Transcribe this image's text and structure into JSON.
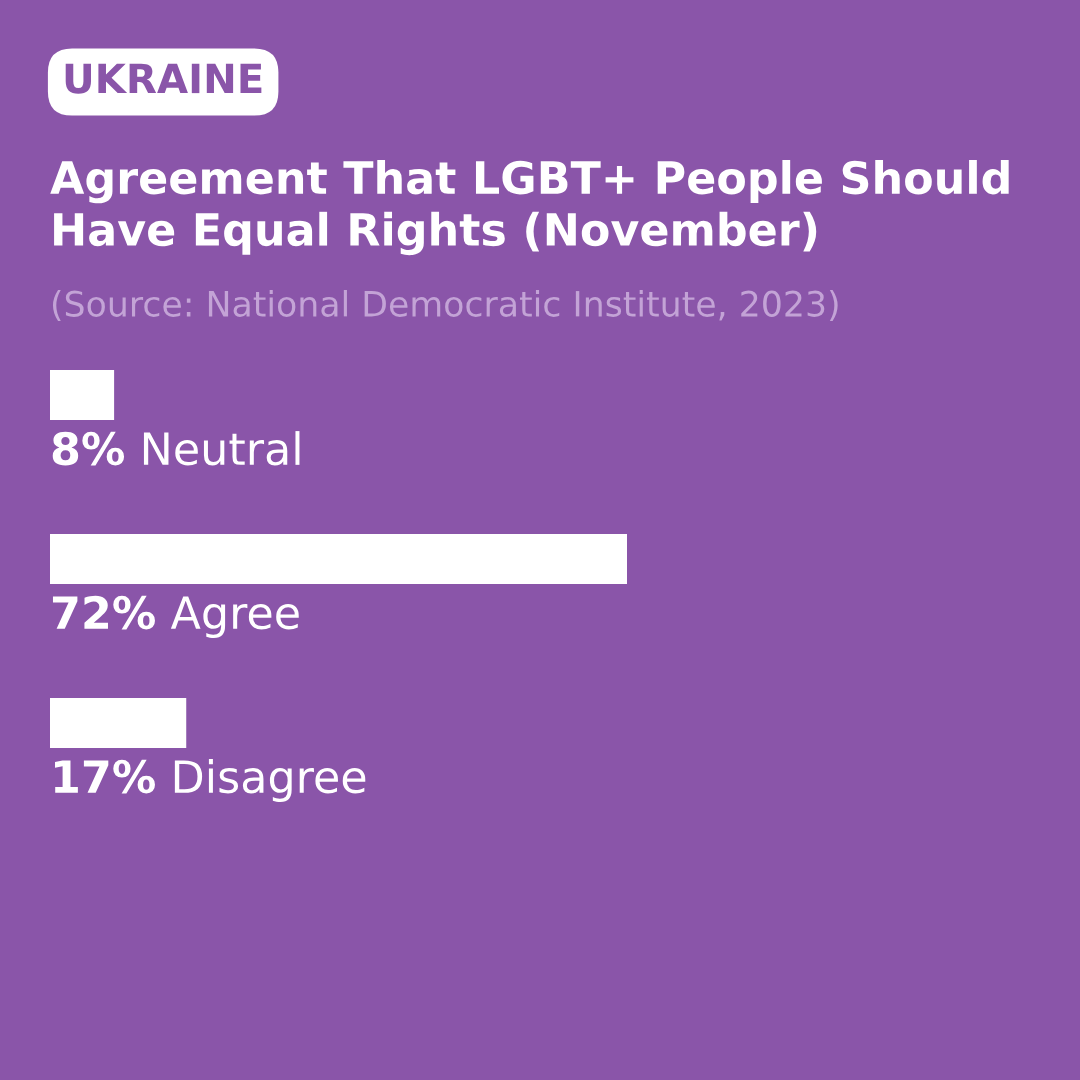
{
  "chart_data": {
    "type": "bar",
    "orientation": "horizontal",
    "title": "Agreement That LGBT+ People Should Have Equal Rights (November)",
    "subtitle": "(Source: National Democratic Institute, 2023)",
    "annotations": [
      "UKRAINE"
    ],
    "categories": [
      "Neutral",
      "Agree",
      "Disagree"
    ],
    "values": [
      8,
      72,
      17
    ],
    "value_labels": [
      "8%",
      "72%",
      "17%"
    ],
    "color": "#ffffff",
    "tick_labels": false
  }
}
